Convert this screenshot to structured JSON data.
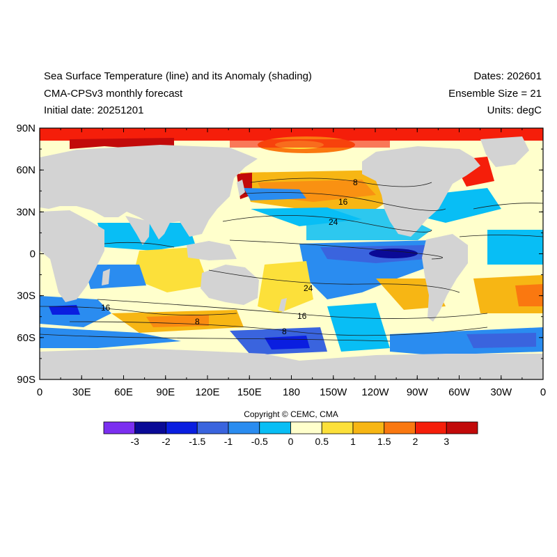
{
  "header": {
    "title_line1": "Sea Surface Temperature (line) and its Anomaly (shading)",
    "title_line2": "CMA-CPSv3 monthly forecast",
    "title_line3": "Initial date: 20251201",
    "right_line1": "Dates: 202601",
    "right_line2": "Ensemble Size = 21",
    "right_line3": "Units: degC"
  },
  "axes": {
    "y_ticks": [
      "90N",
      "60N",
      "30N",
      "0",
      "30S",
      "60S",
      "90S"
    ],
    "x_ticks": [
      "0",
      "30E",
      "60E",
      "90E",
      "120E",
      "150E",
      "180",
      "150W",
      "120W",
      "90W",
      "60W",
      "30W",
      "0"
    ]
  },
  "contour_labels": [
    "8",
    "16",
    "24",
    "24",
    "16",
    "8",
    "16",
    "8"
  ],
  "copyright": "Copyright © CEMC, CMA",
  "colorbar": {
    "colors": [
      "#7b2ff0",
      "#0a0a96",
      "#0a1ee0",
      "#3a64de",
      "#2a8cf0",
      "#08bef5",
      "#ffffcc",
      "#fce03a",
      "#f7b614",
      "#fa7810",
      "#f51e0a",
      "#c20a0a"
    ],
    "labels": [
      "-3",
      "-2",
      "-1.5",
      "-1",
      "-0.5",
      "0",
      "0.5",
      "1",
      "1.5",
      "2",
      "3"
    ]
  },
  "colors": {
    "land": "#d3d3d3",
    "contour": "#1a1a1a"
  }
}
